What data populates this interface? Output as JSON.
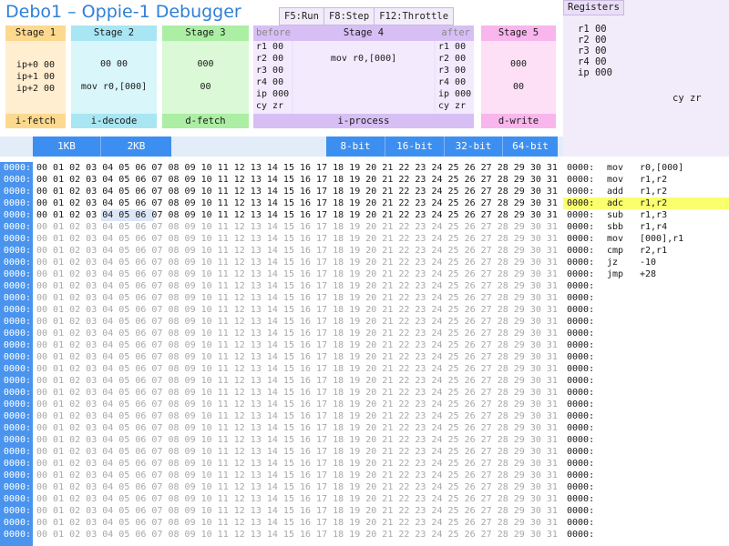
{
  "app": {
    "title": "Debo1 – Oppie-1 Debugger"
  },
  "hotkeys": [
    "F5:Run",
    "F8:Step",
    "F12:Throttle"
  ],
  "stages": {
    "s1": {
      "title": "Stage 1",
      "lines": [
        "ip+0 00",
        "ip+1 00",
        "ip+2 00"
      ],
      "footer": "i-fetch"
    },
    "s2": {
      "title": "Stage 2",
      "lines": [
        "00 00",
        "mov r0,[000]"
      ],
      "footer": "i-decode"
    },
    "s3": {
      "title": "Stage 3",
      "lines": [
        "000",
        "00"
      ],
      "footer": "d-fetch"
    },
    "s4": {
      "title": "Stage 4",
      "before_label": "before",
      "after_label": "after",
      "before": [
        "r1  00",
        "r2  00",
        "r3  00",
        "r4  00",
        "ip 000",
        "cy  zr"
      ],
      "after": [
        "r1  00",
        "r2  00",
        "r3  00",
        "r4  00",
        "ip 000",
        "cy  zr"
      ],
      "instr": "mov r0,[000]",
      "footer": "i-process"
    },
    "s5": {
      "title": "Stage 5",
      "lines": [
        "000",
        "00"
      ],
      "footer": "d-write"
    }
  },
  "registers": {
    "tab": "Registers",
    "lines": [
      "r1  00",
      "r2  00",
      "r3  00",
      "r4  00",
      "ip 000"
    ],
    "flags": "cy zr"
  },
  "size_buttons": {
    "kb1": "1KB",
    "kb2": "2KB",
    "b8": "8-bit",
    "b16": "16-bit",
    "b32": "32-bit",
    "b64": "64-bit"
  },
  "memory": {
    "address": "0000:",
    "row_text": "00 01 02 03 04 05 06 07 08 09 10 11 12 13 14 15 16 17 18 19 20 21 22 23 24 25 26 27 28 29 30 31",
    "active_rows": 5,
    "total_rows": 32
  },
  "disassembly": [
    {
      "addr": "0000:",
      "op": "mov",
      "arg": "r0,[000]"
    },
    {
      "addr": "0000:",
      "op": "mov",
      "arg": "r1,r2"
    },
    {
      "addr": "0000:",
      "op": "add",
      "arg": "r1,r2"
    },
    {
      "addr": "0000:",
      "op": "adc",
      "arg": "r1,r2"
    },
    {
      "addr": "0000:",
      "op": "sub",
      "arg": "r1,r3"
    },
    {
      "addr": "0000:",
      "op": "sbb",
      "arg": "r1,r4"
    },
    {
      "addr": "0000:",
      "op": "mov",
      "arg": "[000],r1"
    },
    {
      "addr": "0000:",
      "op": "cmp",
      "arg": "r2,r1"
    },
    {
      "addr": "0000:",
      "op": "jz",
      "arg": "-10"
    },
    {
      "addr": "0000:",
      "op": "jmp",
      "arg": "+28"
    },
    {
      "addr": "0000:"
    },
    {
      "addr": "0000:"
    },
    {
      "addr": "0000:"
    },
    {
      "addr": "0000:"
    },
    {
      "addr": "0000:"
    },
    {
      "addr": "0000:"
    },
    {
      "addr": "0000:"
    },
    {
      "addr": "0000:"
    },
    {
      "addr": "0000:"
    },
    {
      "addr": "0000:"
    },
    {
      "addr": "0000:"
    },
    {
      "addr": "0000:"
    },
    {
      "addr": "0000:"
    },
    {
      "addr": "0000:"
    },
    {
      "addr": "0000:"
    },
    {
      "addr": "0000:"
    },
    {
      "addr": "0000:"
    },
    {
      "addr": "0000:"
    },
    {
      "addr": "0000:"
    },
    {
      "addr": "0000:"
    },
    {
      "addr": "0000:"
    },
    {
      "addr": "0000:"
    }
  ],
  "highlight_row": 3,
  "colors": {
    "title": "#2f7fd8",
    "accent_blue": "#3c8ff0",
    "highlight": "#faff6e",
    "stage1": "#fdd98f",
    "stage2": "#a9e6f3",
    "stage3": "#abeea4",
    "stage4": "#d7bff5",
    "stage5": "#f9b6ec"
  }
}
